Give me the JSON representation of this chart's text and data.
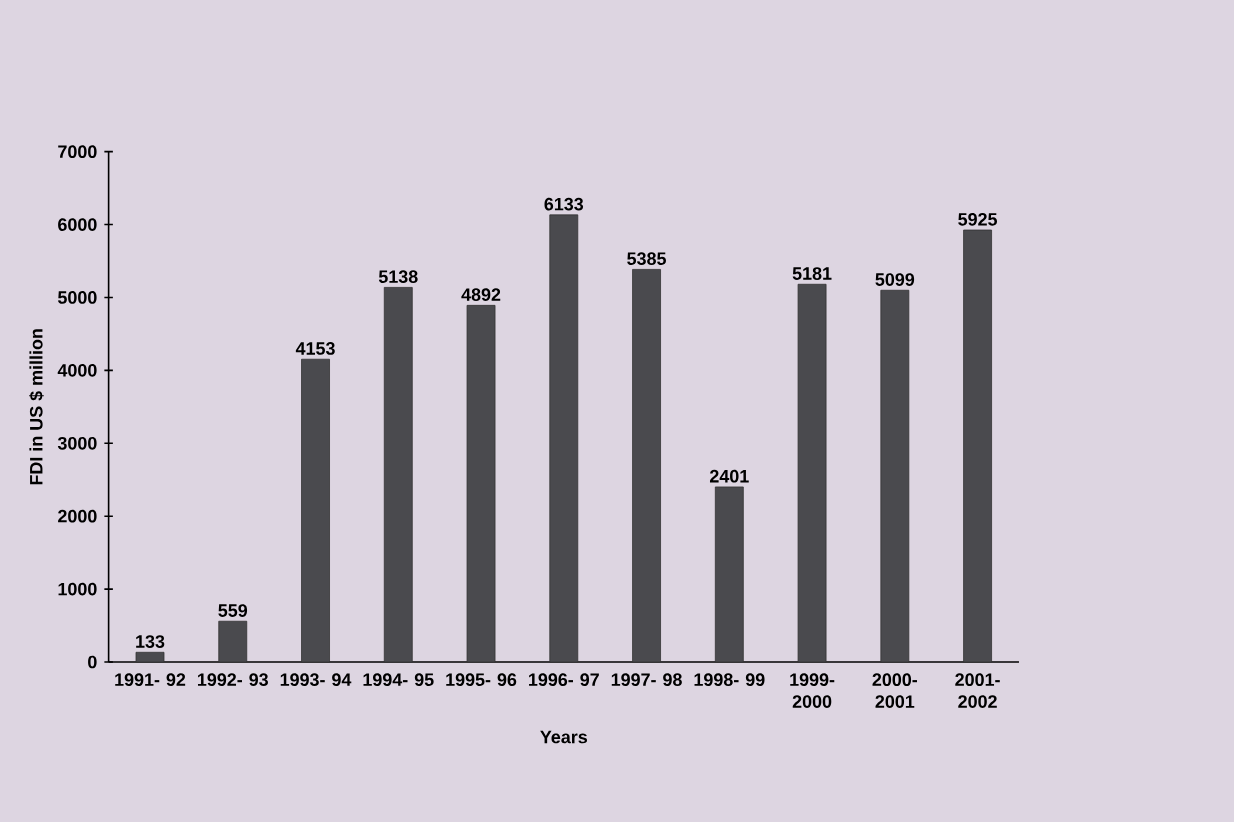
{
  "chart_data": {
    "type": "bar",
    "xlabel": "Years",
    "ylabel": "FDI in US $ million",
    "categories": [
      "1991- 92",
      "1992- 93",
      "1993- 94",
      "1994- 95",
      "1995- 96",
      "1996- 97",
      "1997- 98",
      "1998- 99",
      "1999- 2000",
      "2000- 2001",
      "2001- 2002"
    ],
    "values": [
      133,
      559,
      4153,
      5138,
      4892,
      6133,
      5385,
      2401,
      5181,
      5099,
      5925
    ],
    "color": "#4a4a4e",
    "ylim": [
      0,
      7000
    ],
    "yticks": [
      0,
      1000,
      2000,
      3000,
      4000,
      5000,
      6000,
      7000
    ],
    "data_labels": true
  }
}
